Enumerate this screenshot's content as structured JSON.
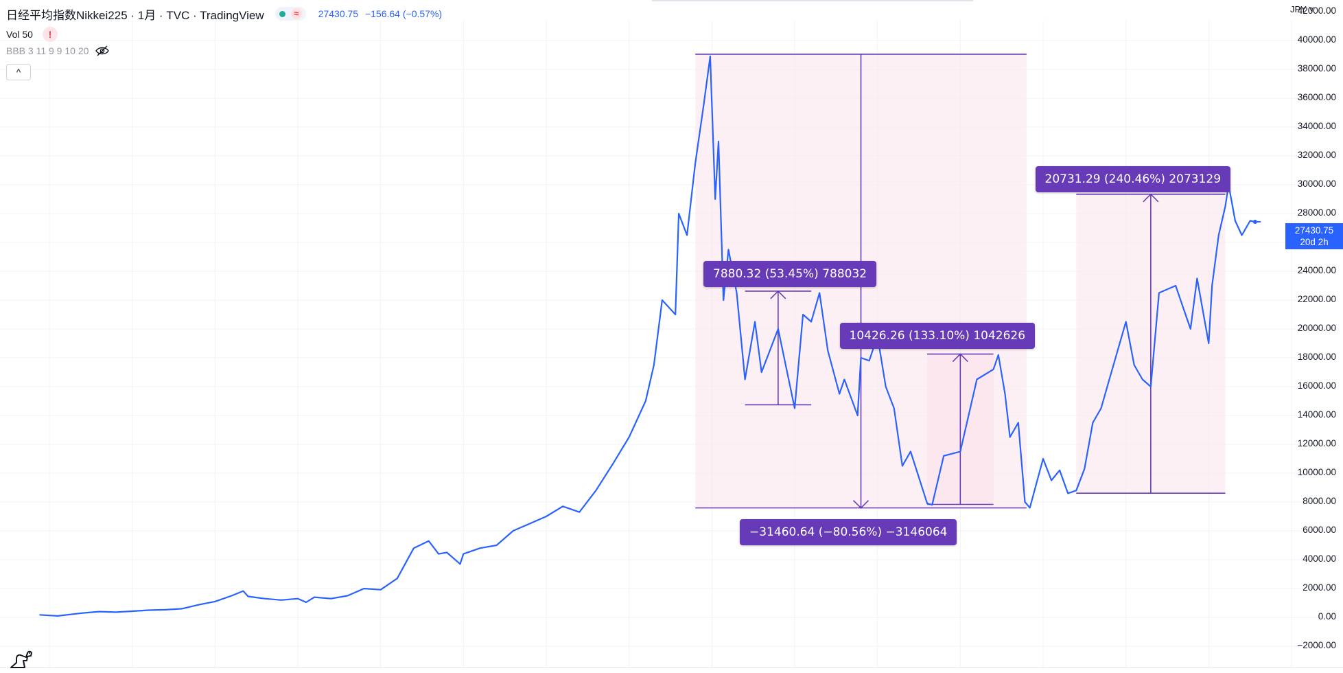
{
  "header": {
    "title": "日经平均指数Nikkei225 · 1月 · TVC · TradingView",
    "price": "27430.75",
    "change": "−156.64 (−0.57%)",
    "delay_symbol": "≈"
  },
  "indicators": {
    "volume": "Vol 50",
    "warning": "!",
    "bbb": "BBB 3 11 9 9 10 20"
  },
  "controls": {
    "collapse": "^",
    "currency": "JPY ˅"
  },
  "price_tag": {
    "value": "27430.75",
    "countdown": "20d 2h"
  },
  "colors": {
    "line": "#2962ff",
    "measure": "#673ab7",
    "measure_fill": "#fce4ec",
    "grid": "#f0f3fa",
    "accent": "#2962ff"
  },
  "measurements": [
    {
      "label": "7880.32 (53.45%) 788032",
      "from": 14741,
      "to": 22621,
      "x_from": 1992,
      "x_to": 1996
    },
    {
      "label": "−31460.64 (−80.56%) −3146064",
      "from": 39050,
      "to": 7589,
      "x_from": 1989,
      "x_to": 2009
    },
    {
      "label": "10426.26 (133.10%) 1042626",
      "from": 7833,
      "to": 18260,
      "x_from": 2003,
      "x_to": 2007
    },
    {
      "label": "20731.29 (240.46%) 2073129",
      "from": 8610,
      "to": 29341,
      "x_from": 2012,
      "x_to": 2021
    }
  ],
  "chart_data": {
    "type": "line",
    "ylim": [
      -2000,
      42000
    ],
    "yticks": [
      "42000.00",
      "40000.00",
      "38000.00",
      "36000.00",
      "34000.00",
      "32000.00",
      "30000.00",
      "28000.00",
      "26000.00",
      "24000.00",
      "22000.00",
      "20000.00",
      "18000.00",
      "16000.00",
      "14000.00",
      "12000.00",
      "10000.00",
      "8000.00",
      "6000.00",
      "4000.00",
      "2000.00",
      "0.00",
      "−2000.00"
    ],
    "ytick_values": [
      42000,
      40000,
      38000,
      36000,
      34000,
      32000,
      30000,
      28000,
      26000,
      24000,
      22000,
      20000,
      18000,
      16000,
      14000,
      12000,
      10000,
      8000,
      6000,
      4000,
      2000,
      0,
      -2000
    ],
    "xlim": [
      1946,
      2025
    ],
    "x_gridlines": [
      1950,
      1955,
      1960,
      1965,
      1970,
      1975,
      1980,
      1985,
      1990,
      1995,
      2000,
      2005,
      2010,
      2015,
      2020,
      2025
    ],
    "grid": true,
    "series": [
      {
        "x": [
          1949.4,
          1950.5,
          1952,
          1953,
          1954,
          1955,
          1956,
          1957,
          1958,
          1959,
          1960,
          1961,
          1961.7,
          1962,
          1963,
          1964,
          1965,
          1965.5,
          1966,
          1967,
          1968,
          1969,
          1970,
          1971,
          1972,
          1972.9,
          1973.5,
          1974,
          1974.8,
          1975,
          1976,
          1977,
          1978,
          1979,
          1980,
          1981,
          1982,
          1983,
          1984,
          1985,
          1986,
          1986.5,
          1987,
          1987.8,
          1988,
          1988.5,
          1989,
          1989.5,
          1989.9,
          1990.2,
          1990.4,
          1990.7,
          1991,
          1991.5,
          1992,
          1992.6,
          1993,
          1994,
          1995,
          1995.5,
          1996,
          1996.5,
          1997,
          1997.7,
          1998,
          1998.8,
          1999,
          1999.5,
          2000,
          2000.5,
          2001,
          2001.5,
          2002,
          2003,
          2003.3,
          2004,
          2005,
          2005.5,
          2006,
          2007,
          2007.3,
          2007.7,
          2008,
          2008.5,
          2008.9,
          2009.2,
          2010,
          2010.5,
          2011,
          2011.5,
          2012,
          2012.5,
          2013,
          2013.5,
          2014,
          2015,
          2015.5,
          2016,
          2016.5,
          2017,
          2018,
          2018.9,
          2019.3,
          2020,
          2020.2,
          2020.6,
          2021,
          2021.2,
          2021.6,
          2022,
          2022.5,
          2022.8
        ],
        "values": [
          176,
          100,
          300,
          400,
          360,
          430,
          500,
          530,
          600,
          870,
          1100,
          1500,
          1830,
          1450,
          1300,
          1200,
          1300,
          1050,
          1400,
          1300,
          1500,
          2000,
          1920,
          2700,
          4800,
          5300,
          4400,
          4500,
          3700,
          4400,
          4800,
          5000,
          6000,
          6500,
          7000,
          7700,
          7300,
          8800,
          10600,
          12500,
          15000,
          17500,
          22000,
          21000,
          28000,
          26500,
          31500,
          35500,
          38900,
          29000,
          33000,
          22000,
          25500,
          22500,
          16500,
          20500,
          17000,
          20000,
          14500,
          21000,
          20500,
          22500,
          18500,
          15500,
          16500,
          14000,
          18000,
          17800,
          19500,
          16000,
          14500,
          10500,
          11500,
          7900,
          7800,
          11200,
          11500,
          14000,
          16500,
          17200,
          18200,
          15500,
          12500,
          13500,
          8000,
          7600,
          11000,
          9500,
          10200,
          8600,
          8800,
          10300,
          13500,
          14500,
          16500,
          20500,
          17500,
          16500,
          16000,
          22500,
          23000,
          20000,
          23500,
          19000,
          23000,
          26500,
          28500,
          30000,
          27500,
          26500,
          27500,
          27430
        ],
        "name": ""
      }
    ]
  }
}
